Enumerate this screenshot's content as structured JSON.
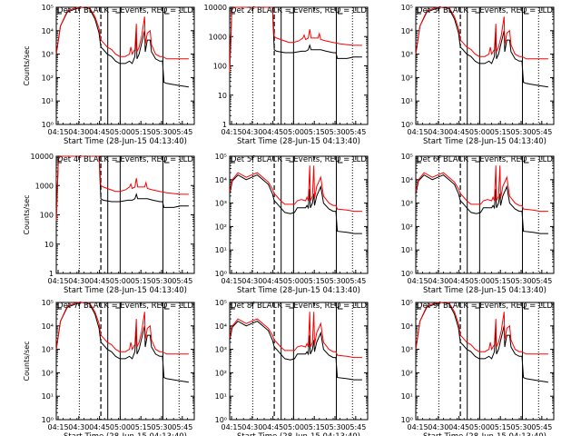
{
  "chart_data": {
    "type": "line",
    "x_tick_labels": [
      "04:15",
      "04:30",
      "04:45",
      "05:00",
      "05:15",
      "05:30",
      "05:45"
    ],
    "legend_text": "BLACK = Events, RED = LLD",
    "colors": {
      "events": "#000000",
      "lld": "#ff0000"
    },
    "x_range_minutes": [
      0,
      100
    ],
    "x_ticks_minutes": [
      1.33,
      16.33,
      31.33,
      46.33,
      61.33,
      76.33,
      91.33
    ],
    "markers": {
      "dotted_minutes": [
        16.7,
        89.0
      ],
      "dashed_minutes": [
        32.3
      ],
      "solid_minutes": [
        37.3,
        46.3,
        77.3
      ]
    },
    "panels": [
      {
        "title": "Det 1f",
        "ylabel": "Counts/sec",
        "scale": "log",
        "ylim": [
          1,
          100000
        ],
        "ytick_labels": [
          "10⁰",
          "10¹",
          "10²",
          "10³",
          "10⁴",
          "10⁵"
        ],
        "profile": "A"
      },
      {
        "title": "Det 2f",
        "ylabel": "",
        "scale": "log",
        "ylim": [
          1,
          10000
        ],
        "ytick_labels": [
          "1",
          "10",
          "100",
          "1000",
          "10000"
        ],
        "profile": "B"
      },
      {
        "title": "Det 3f",
        "ylabel": "",
        "scale": "log",
        "ylim": [
          1,
          100000
        ],
        "ytick_labels": [
          "10⁰",
          "10¹",
          "10²",
          "10³",
          "10⁴",
          "10⁵"
        ],
        "profile": "A"
      },
      {
        "title": "Det 4f",
        "ylabel": "Counts/sec",
        "scale": "log",
        "ylim": [
          1,
          10000
        ],
        "ytick_labels": [
          "1",
          "10",
          "100",
          "1000",
          "10000"
        ],
        "profile": "B"
      },
      {
        "title": "Det 5f",
        "ylabel": "",
        "scale": "log",
        "ylim": [
          1,
          100000
        ],
        "ytick_labels": [
          "10⁰",
          "10¹",
          "10²",
          "10³",
          "10⁴",
          "10⁵"
        ],
        "profile": "C"
      },
      {
        "title": "Det 6f",
        "ylabel": "",
        "scale": "log",
        "ylim": [
          1,
          100000
        ],
        "ytick_labels": [
          "10⁰",
          "10¹",
          "10²",
          "10³",
          "10⁴",
          "10⁵"
        ],
        "profile": "C"
      },
      {
        "title": "Det 7f",
        "ylabel": "Counts/sec",
        "scale": "log",
        "ylim": [
          1,
          100000
        ],
        "ytick_labels": [
          "10⁰",
          "10¹",
          "10²",
          "10³",
          "10⁴",
          "10⁵"
        ],
        "profile": "A"
      },
      {
        "title": "Det 8f",
        "ylabel": "",
        "scale": "log",
        "ylim": [
          1,
          100000
        ],
        "ytick_labels": [
          "10⁰",
          "10¹",
          "10²",
          "10³",
          "10⁴",
          "10⁵"
        ],
        "profile": "C"
      },
      {
        "title": "Det 9f",
        "ylabel": "",
        "scale": "log",
        "ylim": [
          1,
          100000
        ],
        "ytick_labels": [
          "10⁰",
          "10¹",
          "10²",
          "10³",
          "10⁴",
          "10⁵"
        ],
        "profile": "A"
      }
    ],
    "profiles": {
      "A": {
        "red": [
          [
            0,
            3
          ],
          [
            3,
            4.2
          ],
          [
            8,
            4.85
          ],
          [
            15,
            5.0
          ],
          [
            18,
            5.1
          ],
          [
            24,
            5.0
          ],
          [
            28,
            4.6
          ],
          [
            31,
            4.1
          ],
          [
            32.3,
            3.6
          ],
          [
            34,
            3.5
          ],
          [
            37,
            3.3
          ],
          [
            40,
            3.2
          ],
          [
            43,
            3.0
          ],
          [
            46,
            2.9
          ],
          [
            50,
            2.9
          ],
          [
            53,
            3.0
          ],
          [
            54,
            3.3
          ],
          [
            55,
            3.0
          ],
          [
            56,
            3.1
          ],
          [
            57,
            3.2
          ],
          [
            58,
            4.3
          ],
          [
            58.5,
            3.1
          ],
          [
            60,
            3.3
          ],
          [
            62,
            3.8
          ],
          [
            64,
            4.6
          ],
          [
            64.5,
            3.4
          ],
          [
            66,
            3.9
          ],
          [
            68,
            4.0
          ],
          [
            69,
            3.4
          ],
          [
            72,
            3.0
          ],
          [
            75,
            2.9
          ],
          [
            77,
            2.9
          ],
          [
            80,
            2.8
          ],
          [
            85,
            2.8
          ],
          [
            90,
            2.8
          ],
          [
            96,
            2.8
          ]
        ],
        "black": [
          [
            0,
            3
          ],
          [
            3,
            4.2
          ],
          [
            8,
            4.8
          ],
          [
            15,
            4.95
          ],
          [
            18,
            5.05
          ],
          [
            24,
            4.95
          ],
          [
            28,
            4.5
          ],
          [
            31,
            3.9
          ],
          [
            32.3,
            3.3
          ],
          [
            34,
            3.2
          ],
          [
            37,
            3.0
          ],
          [
            40,
            2.9
          ],
          [
            43,
            2.7
          ],
          [
            46,
            2.6
          ],
          [
            50,
            2.6
          ],
          [
            53,
            2.7
          ],
          [
            55,
            2.6
          ],
          [
            57,
            2.9
          ],
          [
            58,
            3.9
          ],
          [
            58.5,
            2.8
          ],
          [
            60,
            3.0
          ],
          [
            62,
            3.5
          ],
          [
            64,
            4.0
          ],
          [
            64.5,
            3.1
          ],
          [
            66,
            3.6
          ],
          [
            68,
            3.6
          ],
          [
            69,
            3.1
          ],
          [
            72,
            2.8
          ],
          [
            75,
            2.7
          ],
          [
            77,
            2.7
          ],
          [
            78,
            1.8
          ],
          [
            80,
            1.75
          ],
          [
            85,
            1.7
          ],
          [
            90,
            1.65
          ],
          [
            96,
            1.6
          ]
        ]
      },
      "B": {
        "red": [
          [
            0,
            1.8
          ],
          [
            1.5,
            3.9
          ],
          [
            3,
            4.0
          ],
          [
            20,
            4.0
          ],
          [
            28,
            4.0
          ],
          [
            31,
            4.0
          ],
          [
            32.3,
            3.0
          ],
          [
            34,
            2.95
          ],
          [
            37,
            2.9
          ],
          [
            40,
            2.85
          ],
          [
            43,
            2.8
          ],
          [
            46,
            2.8
          ],
          [
            50,
            2.85
          ],
          [
            53,
            2.95
          ],
          [
            54,
            3.05
          ],
          [
            55,
            2.9
          ],
          [
            57,
            2.95
          ],
          [
            58,
            3.25
          ],
          [
            59,
            2.95
          ],
          [
            62,
            2.95
          ],
          [
            64,
            2.95
          ],
          [
            65,
            3.1
          ],
          [
            66,
            2.9
          ],
          [
            70,
            2.85
          ],
          [
            75,
            2.8
          ],
          [
            80,
            2.75
          ],
          [
            90,
            2.7
          ],
          [
            96,
            2.7
          ]
        ],
        "black": [
          [
            0,
            1.8
          ],
          [
            1.5,
            3.9
          ],
          [
            3,
            4.0
          ],
          [
            20,
            4.0
          ],
          [
            28,
            4.0
          ],
          [
            31,
            4.0
          ],
          [
            32.3,
            2.55
          ],
          [
            34,
            2.5
          ],
          [
            40,
            2.45
          ],
          [
            46,
            2.45
          ],
          [
            52,
            2.5
          ],
          [
            55,
            2.5
          ],
          [
            57,
            2.55
          ],
          [
            58,
            2.7
          ],
          [
            59,
            2.55
          ],
          [
            62,
            2.55
          ],
          [
            66,
            2.55
          ],
          [
            70,
            2.5
          ],
          [
            75,
            2.45
          ],
          [
            77,
            2.45
          ],
          [
            78,
            2.25
          ],
          [
            85,
            2.25
          ],
          [
            90,
            2.3
          ],
          [
            96,
            2.3
          ]
        ]
      },
      "C": {
        "red": [
          [
            0,
            3.5
          ],
          [
            2,
            4.0
          ],
          [
            6,
            4.3
          ],
          [
            12,
            4.1
          ],
          [
            16,
            4.2
          ],
          [
            20,
            4.3
          ],
          [
            24,
            4.1
          ],
          [
            28,
            3.9
          ],
          [
            31,
            3.6
          ],
          [
            32.3,
            3.4
          ],
          [
            34,
            3.3
          ],
          [
            37,
            3.1
          ],
          [
            40,
            2.95
          ],
          [
            44,
            2.95
          ],
          [
            47,
            2.95
          ],
          [
            49,
            3.1
          ],
          [
            52,
            3.15
          ],
          [
            55,
            3.1
          ],
          [
            56,
            3.25
          ],
          [
            57,
            3.1
          ],
          [
            58,
            4.6
          ],
          [
            58.5,
            3.1
          ],
          [
            60,
            3.3
          ],
          [
            61,
            4.6
          ],
          [
            61.5,
            3.2
          ],
          [
            63,
            3.7
          ],
          [
            66,
            4.1
          ],
          [
            68,
            3.3
          ],
          [
            72,
            3.0
          ],
          [
            75,
            2.9
          ],
          [
            77,
            2.9
          ],
          [
            78,
            2.75
          ],
          [
            85,
            2.7
          ],
          [
            90,
            2.65
          ],
          [
            96,
            2.65
          ]
        ],
        "black": [
          [
            0,
            3.4
          ],
          [
            2,
            3.95
          ],
          [
            6,
            4.2
          ],
          [
            12,
            4.0
          ],
          [
            16,
            4.1
          ],
          [
            20,
            4.2
          ],
          [
            24,
            4.0
          ],
          [
            28,
            3.8
          ],
          [
            31,
            3.4
          ],
          [
            32.3,
            3.1
          ],
          [
            34,
            3.0
          ],
          [
            37,
            2.8
          ],
          [
            40,
            2.6
          ],
          [
            44,
            2.55
          ],
          [
            47,
            2.6
          ],
          [
            49,
            2.8
          ],
          [
            52,
            2.8
          ],
          [
            55,
            2.8
          ],
          [
            56,
            2.9
          ],
          [
            57,
            2.8
          ],
          [
            58,
            3.6
          ],
          [
            58.5,
            2.8
          ],
          [
            60,
            3.0
          ],
          [
            61,
            3.4
          ],
          [
            61.5,
            2.9
          ],
          [
            63,
            3.3
          ],
          [
            66,
            3.7
          ],
          [
            68,
            3.0
          ],
          [
            72,
            2.75
          ],
          [
            75,
            2.65
          ],
          [
            77,
            2.65
          ],
          [
            78,
            1.8
          ],
          [
            85,
            1.75
          ],
          [
            90,
            1.7
          ],
          [
            96,
            1.7
          ]
        ]
      }
    },
    "xlabel": "Start Time (28-Jun-15 04:13:40)"
  }
}
